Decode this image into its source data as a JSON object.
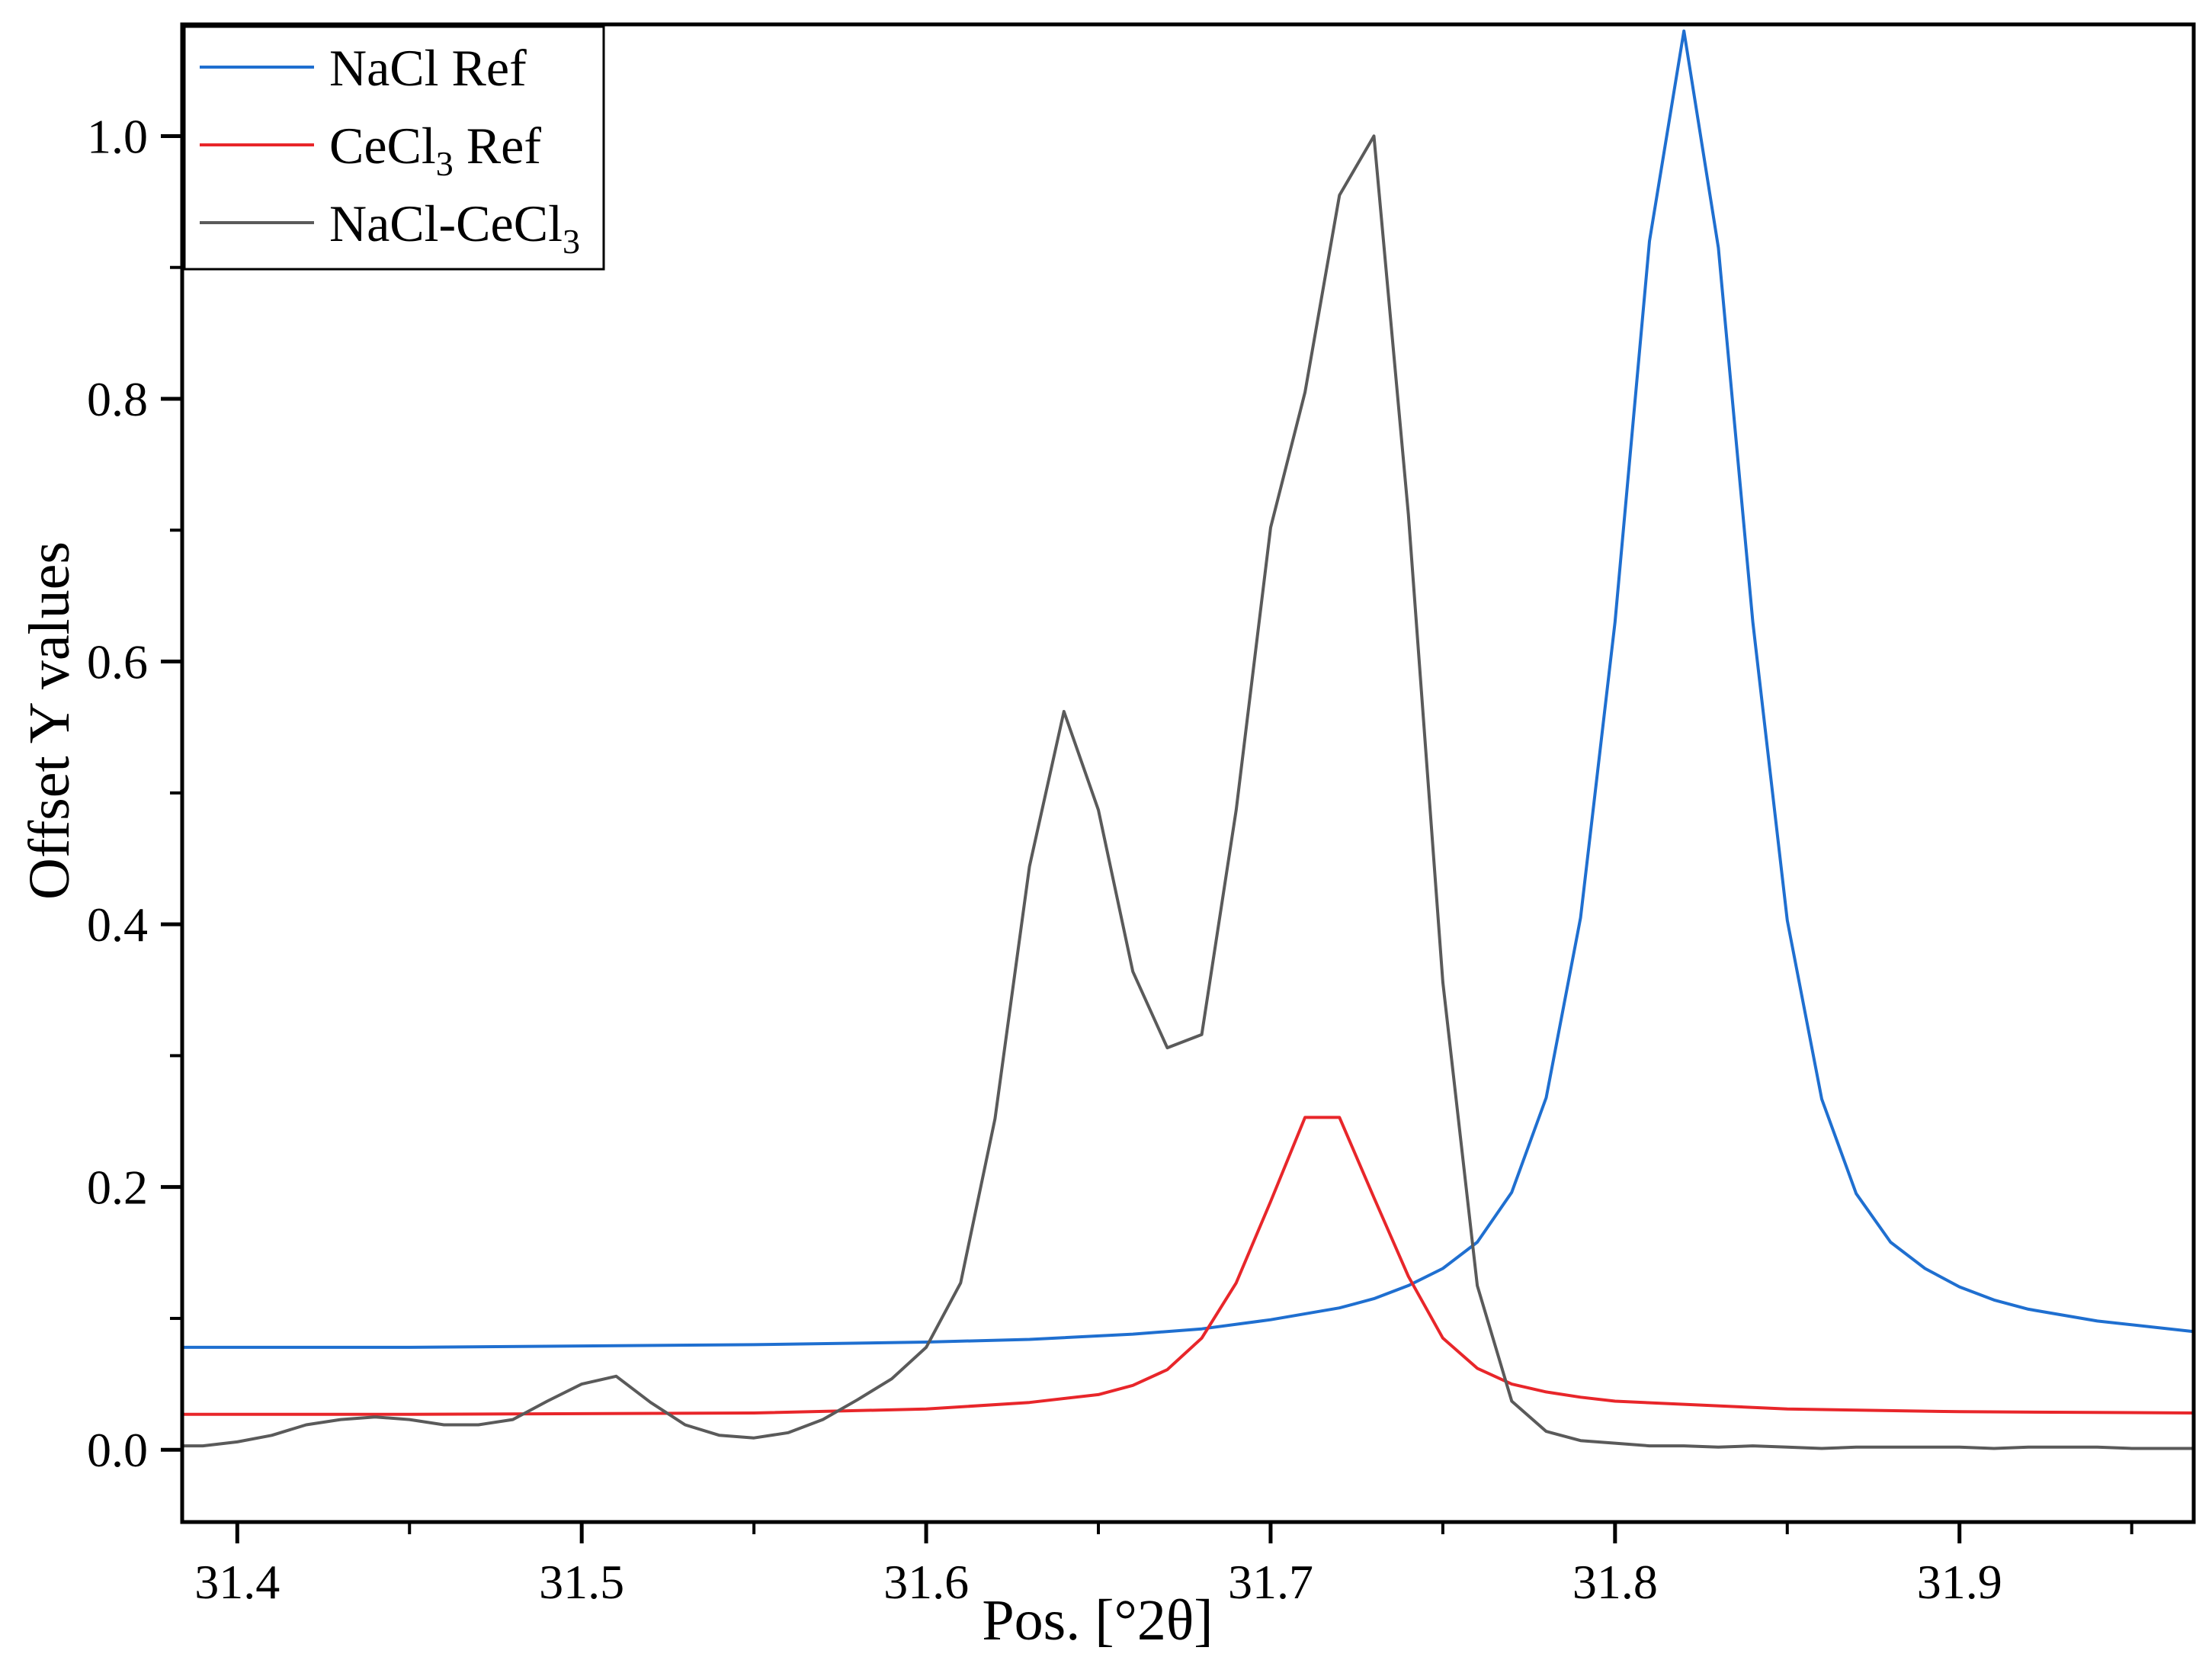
{
  "chart_data": {
    "type": "line",
    "title": "",
    "xlabel": "Pos. [°2θ]",
    "ylabel": "Offset Y values",
    "xlim": [
      31.384,
      31.968
    ],
    "ylim": [
      -0.055,
      1.085
    ],
    "x_ticks": [
      31.4,
      31.5,
      31.6,
      31.7,
      31.8,
      31.9
    ],
    "x_tick_labels": [
      "31.4",
      "31.5",
      "31.6",
      "31.7",
      "31.8",
      "31.9"
    ],
    "y_ticks": [
      0.0,
      0.2,
      0.4,
      0.6,
      0.8,
      1.0
    ],
    "y_tick_labels": [
      "0.0",
      "0.2",
      "0.4",
      "0.6",
      "0.8",
      "1.0"
    ],
    "grid": false,
    "legend_position": "top-left",
    "series": [
      {
        "name": "NaCl Ref",
        "label_main": "NaCl Ref",
        "label_sub": "",
        "label_tail": "",
        "color": "#1f6fd0",
        "x": [
          31.384,
          31.45,
          31.5,
          31.55,
          31.6,
          31.63,
          31.66,
          31.68,
          31.7,
          31.72,
          31.73,
          31.74,
          31.75,
          31.76,
          31.77,
          31.78,
          31.79,
          31.8,
          31.81,
          31.82,
          31.83,
          31.84,
          31.85,
          31.86,
          31.87,
          31.88,
          31.89,
          31.9,
          31.91,
          31.92,
          31.94,
          31.968
        ],
        "y": [
          0.078,
          0.078,
          0.079,
          0.08,
          0.082,
          0.084,
          0.088,
          0.092,
          0.099,
          0.108,
          0.115,
          0.125,
          0.138,
          0.158,
          0.196,
          0.268,
          0.405,
          0.63,
          0.92,
          1.08,
          0.915,
          0.63,
          0.403,
          0.267,
          0.195,
          0.158,
          0.138,
          0.124,
          0.114,
          0.107,
          0.098,
          0.09
        ]
      },
      {
        "name": "CeCl3 Ref",
        "label_main": "CeCl",
        "label_sub": "3",
        "label_tail": " Ref",
        "color": "#e8262a",
        "x": [
          31.384,
          31.45,
          31.55,
          31.6,
          31.63,
          31.65,
          31.66,
          31.67,
          31.68,
          31.69,
          31.7,
          31.71,
          31.72,
          31.73,
          31.74,
          31.75,
          31.76,
          31.77,
          31.78,
          31.79,
          31.8,
          31.85,
          31.9,
          31.968
        ],
        "y": [
          0.027,
          0.027,
          0.028,
          0.031,
          0.036,
          0.042,
          0.049,
          0.061,
          0.085,
          0.127,
          0.189,
          0.253,
          0.253,
          0.192,
          0.132,
          0.085,
          0.062,
          0.05,
          0.044,
          0.04,
          0.037,
          0.031,
          0.029,
          0.028
        ]
      },
      {
        "name": "NaCl-CeCl3",
        "label_main": "NaCl-CeCl",
        "label_sub": "3",
        "label_tail": "",
        "color": "#5a5a5a",
        "x": [
          31.384,
          31.39,
          31.4,
          31.41,
          31.42,
          31.43,
          31.44,
          31.45,
          31.46,
          31.47,
          31.48,
          31.49,
          31.5,
          31.51,
          31.52,
          31.53,
          31.54,
          31.55,
          31.56,
          31.57,
          31.58,
          31.59,
          31.6,
          31.61,
          31.62,
          31.63,
          31.64,
          31.65,
          31.66,
          31.67,
          31.68,
          31.69,
          31.7,
          31.71,
          31.72,
          31.73,
          31.74,
          31.75,
          31.76,
          31.77,
          31.78,
          31.79,
          31.8,
          31.81,
          31.82,
          31.83,
          31.84,
          31.85,
          31.86,
          31.87,
          31.88,
          31.89,
          31.9,
          31.91,
          31.92,
          31.93,
          31.94,
          31.95,
          31.968
        ],
        "y": [
          0.003,
          0.003,
          0.006,
          0.011,
          0.019,
          0.023,
          0.025,
          0.023,
          0.019,
          0.019,
          0.023,
          0.037,
          0.05,
          0.056,
          0.036,
          0.019,
          0.011,
          0.009,
          0.013,
          0.023,
          0.038,
          0.054,
          0.078,
          0.127,
          0.252,
          0.444,
          0.562,
          0.487,
          0.364,
          0.306,
          0.316,
          0.487,
          0.702,
          0.805,
          0.955,
          1.0,
          0.712,
          0.356,
          0.125,
          0.037,
          0.014,
          0.007,
          0.005,
          0.003,
          0.003,
          0.002,
          0.003,
          0.002,
          0.001,
          0.002,
          0.002,
          0.002,
          0.002,
          0.001,
          0.002,
          0.002,
          0.002,
          0.001,
          0.001
        ]
      }
    ]
  }
}
